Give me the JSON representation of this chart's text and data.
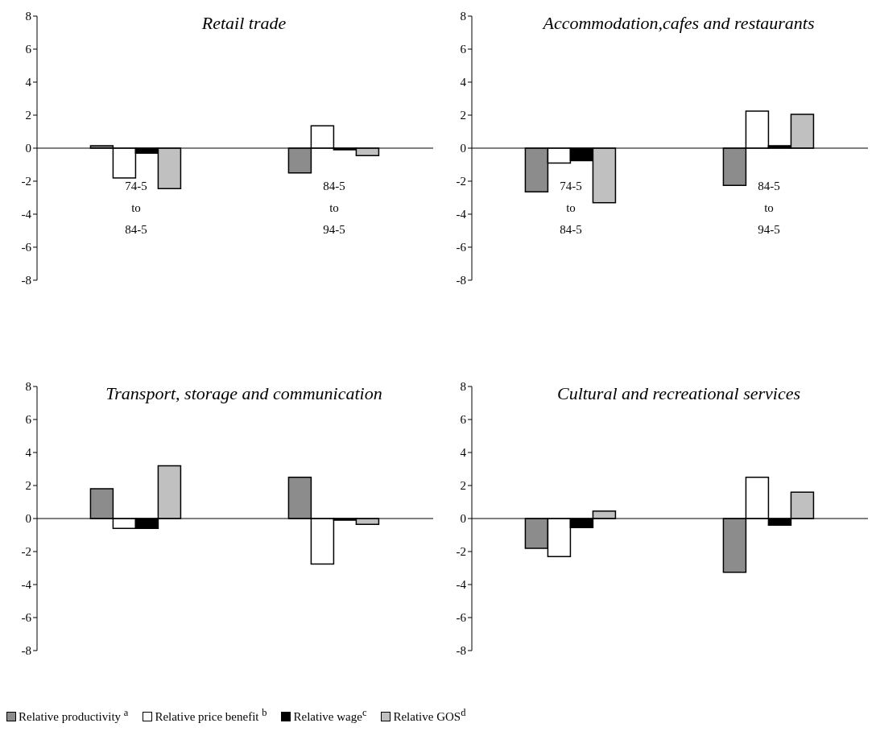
{
  "chart_data": [
    {
      "type": "bar",
      "title": "Retail trade",
      "categories": [
        "74-5 to 84-5",
        "84-5 to 94-5"
      ],
      "ylim": [
        -8,
        8
      ],
      "yticks": [
        -8,
        -6,
        -4,
        -2,
        0,
        2,
        4,
        6,
        8
      ],
      "legend": "bottom",
      "series": [
        {
          "name": "Relative productivity $^{a}$",
          "color": "#8c8c8c",
          "values": [
            0.15,
            -1.5
          ]
        },
        {
          "name": "Relative price benefit $^{b}$",
          "color": "#ffffff",
          "values": [
            -1.8,
            1.35
          ]
        },
        {
          "name": "Relative wage$^{c}$",
          "color": "#000000",
          "values": [
            -0.3,
            -0.1
          ]
        },
        {
          "name": "Relative GOS$^{d}$",
          "color": "#c0c0c0",
          "values": [
            -2.45,
            -0.45
          ]
        }
      ]
    },
    {
      "type": "bar",
      "title": "Accommodation,cafes and restaurants",
      "categories": [
        "74-5 to 84-5",
        "84-5 to 94-5"
      ],
      "ylim": [
        -8,
        8
      ],
      "yticks": [
        -8,
        -6,
        -4,
        -2,
        0,
        2,
        4,
        6,
        8
      ],
      "series": [
        {
          "color": "#8c8c8c",
          "values": [
            -2.65,
            -2.25
          ]
        },
        {
          "color": "#ffffff",
          "values": [
            -0.9,
            2.25
          ]
        },
        {
          "color": "#000000",
          "values": [
            -0.75,
            0.15
          ]
        },
        {
          "color": "#c0c0c0",
          "values": [
            -3.3,
            2.05
          ]
        }
      ]
    },
    {
      "type": "bar",
      "title": "Transport, storage and communication",
      "categories": [
        null,
        null
      ],
      "tick_labels": "y",
      "ylim": [
        -8,
        8
      ],
      "yticks": [
        -8,
        -6,
        -4,
        -2,
        0,
        2,
        4,
        6,
        8
      ],
      "series": [
        {
          "color": "#8c8c8c",
          "values": [
            1.8,
            2.5
          ]
        },
        {
          "color": "#ffffff",
          "values": [
            -0.6,
            -2.75
          ]
        },
        {
          "color": "#000000",
          "values": [
            -0.6,
            -0.1
          ]
        },
        {
          "color": "#c0c0c0",
          "values": [
            3.2,
            -0.35
          ]
        }
      ]
    },
    {
      "type": "bar",
      "title": "Cultural and recreational services",
      "categories": [
        null,
        null
      ],
      "tick_labels": "y",
      "ylim": [
        -8,
        8
      ],
      "yticks": [
        -8,
        -6,
        -4,
        -2,
        0,
        2,
        4,
        6,
        8
      ],
      "series": [
        {
          "color": "#8c8c8c",
          "values": [
            -1.8,
            -3.25
          ]
        },
        {
          "color": "#ffffff",
          "values": [
            -2.3,
            2.5
          ]
        },
        {
          "color": "#000000",
          "values": [
            -0.55,
            -0.4
          ]
        },
        {
          "color": "#c0c0c0",
          "values": [
            0.45,
            1.6
          ]
        }
      ]
    }
  ]
}
